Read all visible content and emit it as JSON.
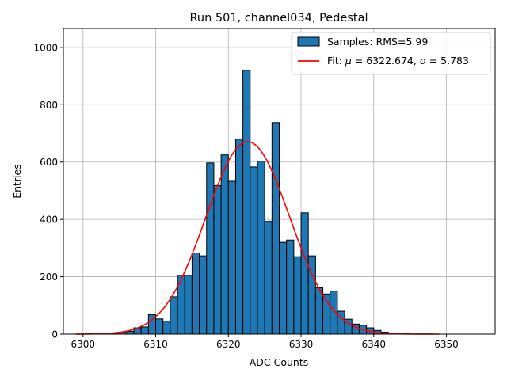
{
  "chart_data": {
    "type": "bar",
    "title": "Run 501, channel034, Pedestal",
    "xlabel": "ADC Counts",
    "ylabel": "Entries",
    "xlim": [
      6297.3,
      6356.7
    ],
    "ylim": [
      0,
      1066
    ],
    "grid": true,
    "legend_position": "top-right",
    "xticks": [
      6300,
      6310,
      6320,
      6330,
      6340,
      6350
    ],
    "yticks": [
      0,
      200,
      400,
      600,
      800,
      1000
    ],
    "histogram": {
      "name": "Samples: RMS=5.99",
      "color": "#1f77b4",
      "edgecolor": "#000000",
      "bin_start": 6303,
      "bin_width": 1,
      "counts": [
        1,
        2,
        6,
        10,
        22,
        25,
        68,
        53,
        45,
        130,
        205,
        205,
        283,
        273,
        597,
        518,
        625,
        533,
        680,
        920,
        583,
        603,
        393,
        738,
        320,
        328,
        270,
        423,
        273,
        162,
        140,
        150,
        80,
        52,
        35,
        31,
        22,
        13,
        7,
        3,
        2
      ]
    },
    "fit": {
      "name": "Fit: μ = 6322.674, σ = 5.783",
      "label_prefix": "Fit: ",
      "label_mu": "μ",
      "label_mid": " = 6322.674, ",
      "label_sigma": "σ",
      "label_suffix": " = 5.783",
      "color": "#ff0000",
      "mu": 6322.674,
      "sigma": 5.783,
      "amplitude": 671,
      "x_range": [
        6299,
        6349
      ]
    }
  }
}
